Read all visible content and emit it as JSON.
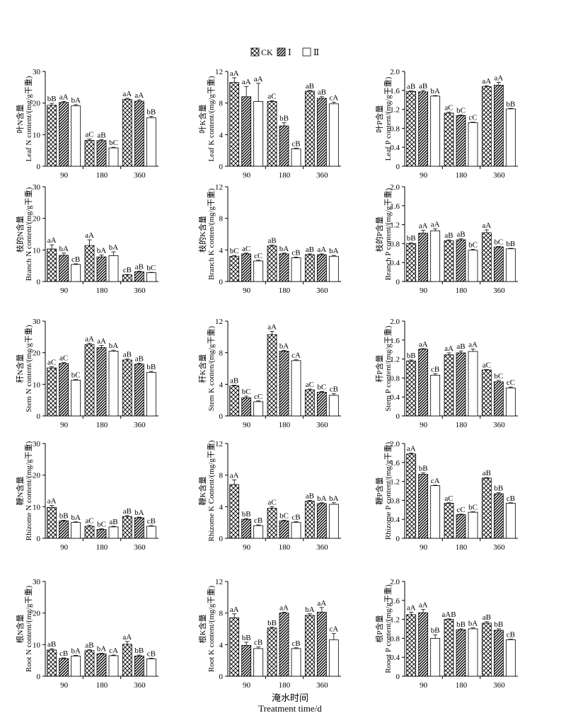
{
  "legend": {
    "items": [
      "CK",
      "Ⅰ",
      "Ⅱ"
    ]
  },
  "x_title_zh": "淹水时间",
  "x_title_en": "Treatment time/d",
  "colors": {
    "bar_edge": "#000000",
    "axis": "#000000"
  },
  "chart_data": [
    {
      "type": "bar",
      "ylabel_zh": "叶N含量",
      "ylabel_en": "Leaf N content/(mg/g干重)",
      "categories": [
        "90",
        "180",
        "360"
      ],
      "ylim": [
        0,
        30
      ],
      "yticks": [
        0,
        10,
        20,
        30
      ],
      "series": [
        {
          "name": "CK",
          "values": [
            19.3,
            8.2,
            21.2
          ],
          "errors": [
            0.6,
            0.4,
            0.3
          ],
          "labels": [
            "bB",
            "aC",
            "aA"
          ]
        },
        {
          "name": "Ⅰ",
          "values": [
            20.2,
            8.1,
            20.6
          ],
          "errors": [
            0.3,
            0.3,
            0.4
          ],
          "labels": [
            "aA",
            "aB",
            "aA"
          ]
        },
        {
          "name": "Ⅱ",
          "values": [
            19.1,
            5.8,
            15.3
          ],
          "errors": [
            0.4,
            0.2,
            0.5
          ],
          "labels": [
            "bA",
            "bC",
            "bB"
          ]
        }
      ]
    },
    {
      "type": "bar",
      "ylabel_zh": "叶K含量",
      "ylabel_en": "Leaf K content/(mg/g干重)",
      "categories": [
        "90",
        "180",
        "360"
      ],
      "ylim": [
        0,
        12
      ],
      "yticks": [
        0,
        4,
        8,
        12
      ],
      "series": [
        {
          "name": "CK",
          "values": [
            10.6,
            8.2,
            9.5
          ],
          "errors": [
            0.6,
            0.1,
            0.1
          ],
          "labels": [
            "aA",
            "aC",
            "aB"
          ]
        },
        {
          "name": "Ⅰ",
          "values": [
            8.8,
            5.1,
            8.6
          ],
          "errors": [
            1.3,
            0.4,
            0.2
          ],
          "labels": [
            "aA",
            "bB",
            "aB"
          ]
        },
        {
          "name": "Ⅱ",
          "values": [
            8.2,
            2.2,
            7.9
          ],
          "errors": [
            2.3,
            0.1,
            0.2
          ],
          "labels": [
            "aA",
            "cB",
            "cA"
          ]
        }
      ]
    },
    {
      "type": "bar",
      "ylabel_zh": "叶P含量",
      "ylabel_en": "Leaf P content/(mg/g干重)",
      "categories": [
        "90",
        "180",
        "360"
      ],
      "ylim": [
        0,
        2.0
      ],
      "yticks": [
        0,
        0.4,
        0.8,
        1.2,
        1.6,
        2.0
      ],
      "series": [
        {
          "name": "CK",
          "values": [
            1.58,
            1.12,
            1.68
          ],
          "errors": [
            0.01,
            0.02,
            0.02
          ],
          "labels": [
            "aB",
            "aC",
            "aA"
          ]
        },
        {
          "name": "Ⅰ",
          "values": [
            1.57,
            1.07,
            1.71
          ],
          "errors": [
            0.03,
            0.01,
            0.06
          ],
          "labels": [
            "aB",
            "bC",
            "aA"
          ]
        },
        {
          "name": "Ⅱ",
          "values": [
            1.48,
            0.92,
            1.21
          ],
          "errors": [
            0.01,
            0.01,
            0.01
          ],
          "labels": [
            "bA",
            "cC",
            "bB"
          ]
        }
      ]
    },
    {
      "type": "bar",
      "ylabel_zh": "枝的N含量",
      "ylabel_en": "Branch N content/(mg/g干重)",
      "categories": [
        "90",
        "180",
        "360"
      ],
      "ylim": [
        0,
        30
      ],
      "yticks": [
        0,
        10,
        20,
        30
      ],
      "series": [
        {
          "name": "CK",
          "values": [
            10.3,
            11.4,
            2.1
          ],
          "errors": [
            1.3,
            1.8,
            0.1
          ],
          "labels": [
            "aA",
            "aA",
            "cB"
          ]
        },
        {
          "name": "Ⅰ",
          "values": [
            8.3,
            7.8,
            3.1
          ],
          "errors": [
            0.7,
            0.6,
            0.2
          ],
          "labels": [
            "bA",
            "bA",
            "aB"
          ]
        },
        {
          "name": "Ⅱ",
          "values": [
            5.4,
            8.2,
            2.8
          ],
          "errors": [
            0.2,
            1.2,
            0.1
          ],
          "labels": [
            "cB",
            "bA",
            "bC"
          ]
        }
      ]
    },
    {
      "type": "bar",
      "ylabel_zh": "枝的K含量",
      "ylabel_en": "Branch K conten/(mg/g干重)",
      "categories": [
        "90",
        "180",
        "360"
      ],
      "ylim": [
        0,
        12
      ],
      "yticks": [
        0,
        4,
        8,
        12
      ],
      "series": [
        {
          "name": "CK",
          "values": [
            3.2,
            4.5,
            3.4
          ],
          "errors": [
            0.1,
            0.1,
            0.1
          ],
          "labels": [
            "bC",
            "aB",
            "aB"
          ]
        },
        {
          "name": "Ⅰ",
          "values": [
            3.5,
            3.5,
            3.4
          ],
          "errors": [
            0.1,
            0.1,
            0.1
          ],
          "labels": [
            "aC",
            "bA",
            "aA"
          ]
        },
        {
          "name": "Ⅱ",
          "values": [
            2.6,
            3.0,
            3.2
          ],
          "errors": [
            0.1,
            0.1,
            0.1
          ],
          "labels": [
            "cC",
            "cB",
            "bA"
          ]
        }
      ]
    },
    {
      "type": "bar",
      "ylabel_zh": "枝的P含量",
      "ylabel_en": "Branch P content/(mg/g干重)",
      "categories": [
        "90",
        "180",
        "360"
      ],
      "ylim": [
        0,
        2.0
      ],
      "yticks": [
        0,
        0.4,
        0.8,
        1.2,
        1.6,
        2.0
      ],
      "series": [
        {
          "name": "CK",
          "values": [
            0.8,
            0.86,
            1.03
          ],
          "errors": [
            0.02,
            0.02,
            0.06
          ],
          "labels": [
            "bB",
            "aB",
            "aA"
          ]
        },
        {
          "name": "Ⅰ",
          "values": [
            1.02,
            0.88,
            0.73
          ],
          "errors": [
            0.06,
            0.02,
            0.01
          ],
          "labels": [
            "aA",
            "aB",
            "bC"
          ]
        },
        {
          "name": "Ⅱ",
          "values": [
            1.07,
            0.66,
            0.69
          ],
          "errors": [
            0.04,
            0.02,
            0.01
          ],
          "labels": [
            "aA",
            "bC",
            "bB"
          ]
        }
      ]
    },
    {
      "type": "bar",
      "ylabel_zh": "秆N含量",
      "ylabel_en": "Stem N content/(mg/g干重)",
      "categories": [
        "90",
        "180",
        "360"
      ],
      "ylim": [
        0,
        30
      ],
      "yticks": [
        0,
        10,
        20,
        30
      ],
      "series": [
        {
          "name": "CK",
          "values": [
            15.2,
            22.6,
            17.7
          ],
          "errors": [
            0.4,
            0.4,
            0.3
          ],
          "labels": [
            "aC",
            "aA",
            "aB"
          ]
        },
        {
          "name": "Ⅰ",
          "values": [
            16.6,
            21.6,
            16.4
          ],
          "errors": [
            0.3,
            0.7,
            0.3
          ],
          "labels": [
            "aC",
            "aA",
            "aB"
          ]
        },
        {
          "name": "Ⅱ",
          "values": [
            11.3,
            20.5,
            13.8
          ],
          "errors": [
            0.2,
            0.3,
            0.3
          ],
          "labels": [
            "bC",
            "bA",
            "bB"
          ]
        }
      ]
    },
    {
      "type": "bar",
      "ylabel_zh": "秆K含量",
      "ylabel_en": "Stem K conten/(mg/g干重)",
      "categories": [
        "90",
        "180",
        "360"
      ],
      "ylim": [
        0,
        12
      ],
      "yticks": [
        0,
        4,
        8,
        12
      ],
      "series": [
        {
          "name": "CK",
          "values": [
            3.8,
            10.3,
            3.3
          ],
          "errors": [
            0.1,
            0.4,
            0.1
          ],
          "labels": [
            "aB",
            "aA",
            "aC"
          ]
        },
        {
          "name": "Ⅰ",
          "values": [
            2.3,
            8.2,
            3.0
          ],
          "errors": [
            0.2,
            0.1,
            0.1
          ],
          "labels": [
            "bC",
            "bA",
            "bC"
          ]
        },
        {
          "name": "Ⅱ",
          "values": [
            1.8,
            7.0,
            2.6
          ],
          "errors": [
            0.1,
            0.1,
            0.2
          ],
          "labels": [
            "cC",
            "cA",
            "cB"
          ]
        }
      ]
    },
    {
      "type": "bar",
      "ylabel_zh": "秆P含量",
      "ylabel_en": "Stem P content/(mg/g干重)",
      "categories": [
        "90",
        "180",
        "360"
      ],
      "ylim": [
        0,
        2.0
      ],
      "yticks": [
        0,
        0.4,
        0.8,
        1.2,
        1.6,
        2.0
      ],
      "series": [
        {
          "name": "CK",
          "values": [
            1.16,
            1.29,
            0.97
          ],
          "errors": [
            0.02,
            0.04,
            0.01
          ],
          "labels": [
            "bB",
            "aA",
            "aC"
          ]
        },
        {
          "name": "Ⅰ",
          "values": [
            1.41,
            1.33,
            0.72
          ],
          "errors": [
            0.01,
            0.04,
            0.03
          ],
          "labels": [
            "aA",
            "aB",
            "bC"
          ]
        },
        {
          "name": "Ⅱ",
          "values": [
            0.86,
            1.36,
            0.59
          ],
          "errors": [
            0.03,
            0.05,
            0.02
          ],
          "labels": [
            "cB",
            "aA",
            "cC"
          ]
        }
      ]
    },
    {
      "type": "bar",
      "ylabel_zh": "鞭N含量",
      "ylabel_en": "Rhizome N content/(mg/g干重)",
      "categories": [
        "90",
        "180",
        "360"
      ],
      "ylim": [
        0,
        30
      ],
      "yticks": [
        0,
        10,
        20,
        30
      ],
      "series": [
        {
          "name": "CK",
          "values": [
            9.8,
            3.8,
            6.9
          ],
          "errors": [
            0.6,
            0.3,
            0.3
          ],
          "labels": [
            "aA",
            "aC",
            "aB"
          ]
        },
        {
          "name": "Ⅰ",
          "values": [
            5.5,
            2.8,
            6.5
          ],
          "errors": [
            0.2,
            0.2,
            0.2
          ],
          "labels": [
            "bB",
            "bC",
            "bA"
          ]
        },
        {
          "name": "Ⅱ",
          "values": [
            5.0,
            3.6,
            3.8
          ],
          "errors": [
            0.2,
            0.2,
            0.2
          ],
          "labels": [
            "bA",
            "aB",
            "cB"
          ]
        }
      ]
    },
    {
      "type": "bar",
      "ylabel_zh": "鞭K含量",
      "ylabel_en": "Rhizome K Content/(mg/g干重)",
      "categories": [
        "90",
        "180",
        "360"
      ],
      "ylim": [
        0,
        12
      ],
      "yticks": [
        0,
        4,
        8,
        12
      ],
      "series": [
        {
          "name": "CK",
          "values": [
            6.8,
            3.8,
            4.7
          ],
          "errors": [
            0.6,
            0.2,
            0.1
          ],
          "labels": [
            "aA",
            "aC",
            "aB"
          ]
        },
        {
          "name": "Ⅰ",
          "values": [
            2.4,
            2.2,
            4.4
          ],
          "errors": [
            0.1,
            0.1,
            0.1
          ],
          "labels": [
            "bB",
            "bC",
            "bA"
          ]
        },
        {
          "name": "Ⅱ",
          "values": [
            1.6,
            2.0,
            4.3
          ],
          "errors": [
            0.1,
            0.1,
            0.2
          ],
          "labels": [
            "cB",
            "cB",
            "bA"
          ]
        }
      ]
    },
    {
      "type": "bar",
      "ylabel_zh": "鞭P含量",
      "ylabel_en": "Rhizome P content/(mg/g干重)",
      "categories": [
        "90",
        "180",
        "360"
      ],
      "ylim": [
        0,
        2.0
      ],
      "yticks": [
        0,
        0.4,
        0.8,
        1.2,
        1.6,
        2.0
      ],
      "series": [
        {
          "name": "CK",
          "values": [
            1.78,
            0.74,
            1.27
          ],
          "errors": [
            0.02,
            0.01,
            0.01
          ],
          "labels": [
            "aA",
            "aC",
            "aB"
          ]
        },
        {
          "name": "Ⅰ",
          "values": [
            1.35,
            0.5,
            0.94
          ],
          "errors": [
            0.03,
            0.01,
            0.02
          ],
          "labels": [
            "bB",
            "cC",
            "bB"
          ]
        },
        {
          "name": "Ⅱ",
          "values": [
            1.11,
            0.55,
            0.74
          ],
          "errors": [
            0.01,
            0.01,
            0.01
          ],
          "labels": [
            "cA",
            "bC",
            "cB"
          ]
        }
      ]
    },
    {
      "type": "bar",
      "ylabel_zh": "根N含量",
      "ylabel_en": "Root  N content/(mg/g干重)",
      "categories": [
        "90",
        "180",
        "360"
      ],
      "ylim": [
        0,
        30
      ],
      "yticks": [
        0,
        10,
        20,
        30
      ],
      "series": [
        {
          "name": "CK",
          "values": [
            8.3,
            8.1,
            10.1
          ],
          "errors": [
            0.4,
            0.3,
            0.9
          ],
          "labels": [
            "aB",
            "aB",
            "aA"
          ]
        },
        {
          "name": "Ⅰ",
          "values": [
            5.6,
            7.1,
            6.4
          ],
          "errors": [
            0.2,
            0.2,
            0.3
          ],
          "labels": [
            "cB",
            "bA",
            "bB"
          ]
        },
        {
          "name": "Ⅱ",
          "values": [
            6.4,
            6.5,
            5.5
          ],
          "errors": [
            0.2,
            0.2,
            0.2
          ],
          "labels": [
            "bA",
            "cA",
            "cB"
          ]
        }
      ]
    },
    {
      "type": "bar",
      "ylabel_zh": "根K含量",
      "ylabel_en": "Root  K content/(mg/g干重)",
      "categories": [
        "90",
        "180",
        "360"
      ],
      "ylim": [
        0,
        12
      ],
      "yticks": [
        0,
        4,
        8,
        12
      ],
      "series": [
        {
          "name": "CK",
          "values": [
            7.4,
            6.1,
            7.7
          ],
          "errors": [
            0.5,
            0.1,
            0.2
          ],
          "labels": [
            "aA",
            "bB",
            "bA"
          ]
        },
        {
          "name": "Ⅰ",
          "values": [
            3.9,
            8.0,
            8.1
          ],
          "errors": [
            0.4,
            0.1,
            0.6
          ],
          "labels": [
            "bB",
            "aA",
            "aA"
          ]
        },
        {
          "name": "Ⅱ",
          "values": [
            3.5,
            3.5,
            4.6
          ],
          "errors": [
            0.2,
            0.1,
            0.8
          ],
          "labels": [
            "cB",
            "cB",
            "cA"
          ]
        }
      ]
    },
    {
      "type": "bar",
      "ylabel_zh": "根P含量",
      "ylabel_en": "Rooot  P content/(mg/g干重)",
      "categories": [
        "90",
        "180",
        "360"
      ],
      "ylim": [
        0,
        2.0
      ],
      "yticks": [
        0,
        0.4,
        0.8,
        1.2,
        1.6,
        2.0
      ],
      "series": [
        {
          "name": "CK",
          "values": [
            1.3,
            1.2,
            1.12
          ],
          "errors": [
            0.05,
            0.01,
            0.03
          ],
          "labels": [
            "aA",
            "aAB",
            "aB"
          ]
        },
        {
          "name": "Ⅰ",
          "values": [
            1.34,
            0.98,
            0.97
          ],
          "errors": [
            0.07,
            0.02,
            0.03
          ],
          "labels": [
            "aA",
            "bB",
            "bB"
          ]
        },
        {
          "name": "Ⅱ",
          "values": [
            0.8,
            1.0,
            0.77
          ],
          "errors": [
            0.07,
            0.02,
            0.01
          ],
          "labels": [
            "bB",
            "bA",
            "cB"
          ]
        }
      ]
    }
  ]
}
